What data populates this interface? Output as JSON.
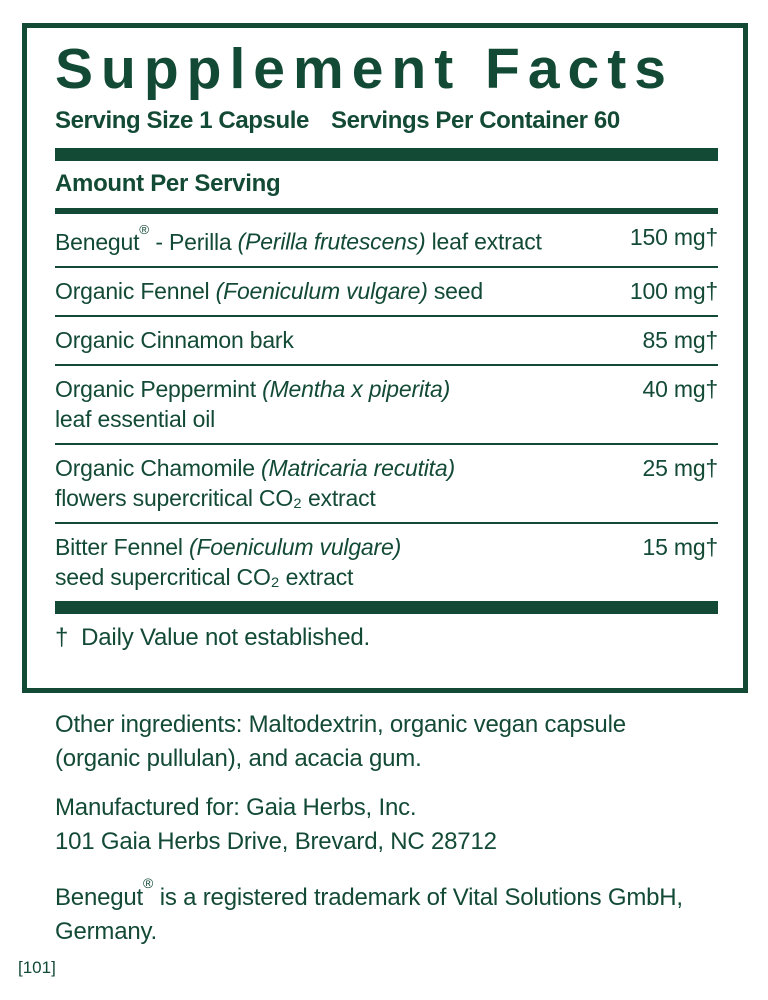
{
  "colors": {
    "green": "#134A36"
  },
  "panel": {
    "title": "Supplement Facts",
    "serving_size": "Serving Size 1 Capsule",
    "servings_per_container": "Servings Per Container 60",
    "amount_header": "Amount Per Serving",
    "rows": [
      {
        "prefix": "Benegut® - Perilla ",
        "latin": "(Perilla frutescens)",
        "suffix": " leaf extract",
        "line2": "",
        "amount": "150 mg†"
      },
      {
        "prefix": "Organic Fennel ",
        "latin": "(Foeniculum vulgare)",
        "suffix": " seed",
        "line2": "",
        "amount": "100 mg†"
      },
      {
        "prefix": "Organic Cinnamon bark",
        "latin": "",
        "suffix": "",
        "line2": "",
        "amount": "85 mg†"
      },
      {
        "prefix": "Organic Peppermint ",
        "latin": "(Mentha x piperita)",
        "suffix": "",
        "line2": "leaf essential oil",
        "amount": "40 mg†"
      },
      {
        "prefix": "Organic Chamomile ",
        "latin": "(Matricaria recutita)",
        "suffix": "",
        "line2": "flowers supercritical CO₂ extract",
        "amount": "25 mg†"
      },
      {
        "prefix": "Bitter Fennel ",
        "latin": "(Foeniculum vulgare)",
        "suffix": "",
        "line2": "seed supercritical CO₂ extract",
        "amount": "15 mg†"
      }
    ],
    "footnote_mark": "†",
    "footnote_text": "Daily Value not established."
  },
  "info": {
    "other_ingredients": "Other ingredients: Maltodextrin, organic vegan capsule (organic pullulan), and acacia gum.",
    "manufactured_for": "Manufactured for: Gaia Herbs, Inc.",
    "address": "101 Gaia Herbs Drive, Brevard, NC 28712",
    "trademark": "Benegut® is a registered trademark of Vital Solutions GmbH, Germany.",
    "code": "[101]"
  }
}
